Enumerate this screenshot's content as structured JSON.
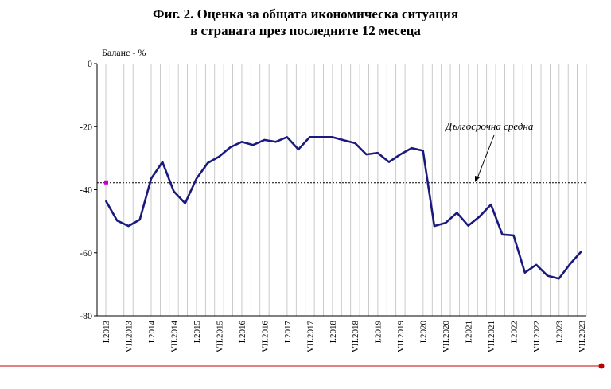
{
  "chart_data": {
    "type": "line",
    "title_line1": "Фиг. 2. Оценка за общата икономическа ситуация",
    "title_line2": "в страната през последните 12 месеца",
    "ylabel": "Баланс - %",
    "ylim": [
      -80,
      0
    ],
    "yticks": [
      0,
      -20,
      -40,
      -60,
      -80
    ],
    "grid": "vertical",
    "x_ticks": [
      "I.2013",
      "VII.2013",
      "I.2014",
      "VII.2014",
      "I.2015",
      "VII.2015",
      "I.2016",
      "VII.2016",
      "I.2017",
      "VII.2017",
      "I.2018",
      "VII.2018",
      "I.2019",
      "VII.2019",
      "I.2020",
      "VII.2020",
      "I.2021",
      "VII.2021",
      "I.2022",
      "VII.2022",
      "I.2023",
      "VII.2023"
    ],
    "series": [
      {
        "color": "#1a1a7e",
        "values": [
          -43.5,
          -49.8,
          -51.5,
          -49.5,
          -36.5,
          -31.2,
          -40.5,
          -44.3,
          -36.5,
          -31.5,
          -29.5,
          -26.5,
          -24.8,
          -25.8,
          -24.2,
          -24.8,
          -23.3,
          -27.2,
          -23.3,
          -23.3,
          -23.3,
          -24.3,
          -25.2,
          -28.8,
          -28.3,
          -31.2,
          -28.8,
          -26.8,
          -27.6,
          -51.5,
          -50.5,
          -47.3,
          -51.4,
          -48.5,
          -44.7,
          -54.2,
          -54.5,
          -66.3,
          -63.8,
          -67.3,
          -68.2,
          -63.5,
          -59.5
        ]
      }
    ],
    "long_term_average": {
      "label": "Дългосрочна средна",
      "value": -37.8,
      "color": "#000000"
    },
    "marker": {
      "value": -37.8,
      "color": "#cc00cc"
    },
    "bottom_rule_color": "#c00000"
  }
}
